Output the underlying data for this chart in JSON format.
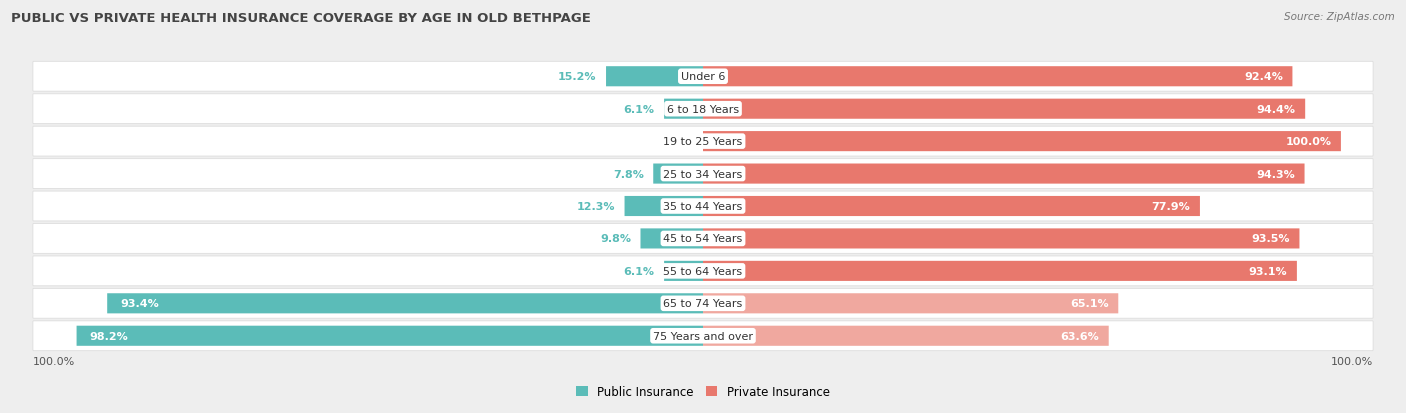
{
  "title": "PUBLIC VS PRIVATE HEALTH INSURANCE COVERAGE BY AGE IN OLD BETHPAGE",
  "source": "Source: ZipAtlas.com",
  "categories": [
    "Under 6",
    "6 to 18 Years",
    "19 to 25 Years",
    "25 to 34 Years",
    "35 to 44 Years",
    "45 to 54 Years",
    "55 to 64 Years",
    "65 to 74 Years",
    "75 Years and over"
  ],
  "public_values": [
    15.2,
    6.1,
    0.0,
    7.8,
    12.3,
    9.8,
    6.1,
    93.4,
    98.2
  ],
  "private_values": [
    92.4,
    94.4,
    100.0,
    94.3,
    77.9,
    93.5,
    93.1,
    65.1,
    63.6
  ],
  "public_color": "#5bbcb8",
  "private_color_strong": "#e8786d",
  "private_color_light": "#f0a89f",
  "bg_color": "#eeeeee",
  "row_bg": "#f8f8f8",
  "title_color": "#444444",
  "bar_height": 0.62,
  "legend_labels": [
    "Public Insurance",
    "Private Insurance"
  ]
}
